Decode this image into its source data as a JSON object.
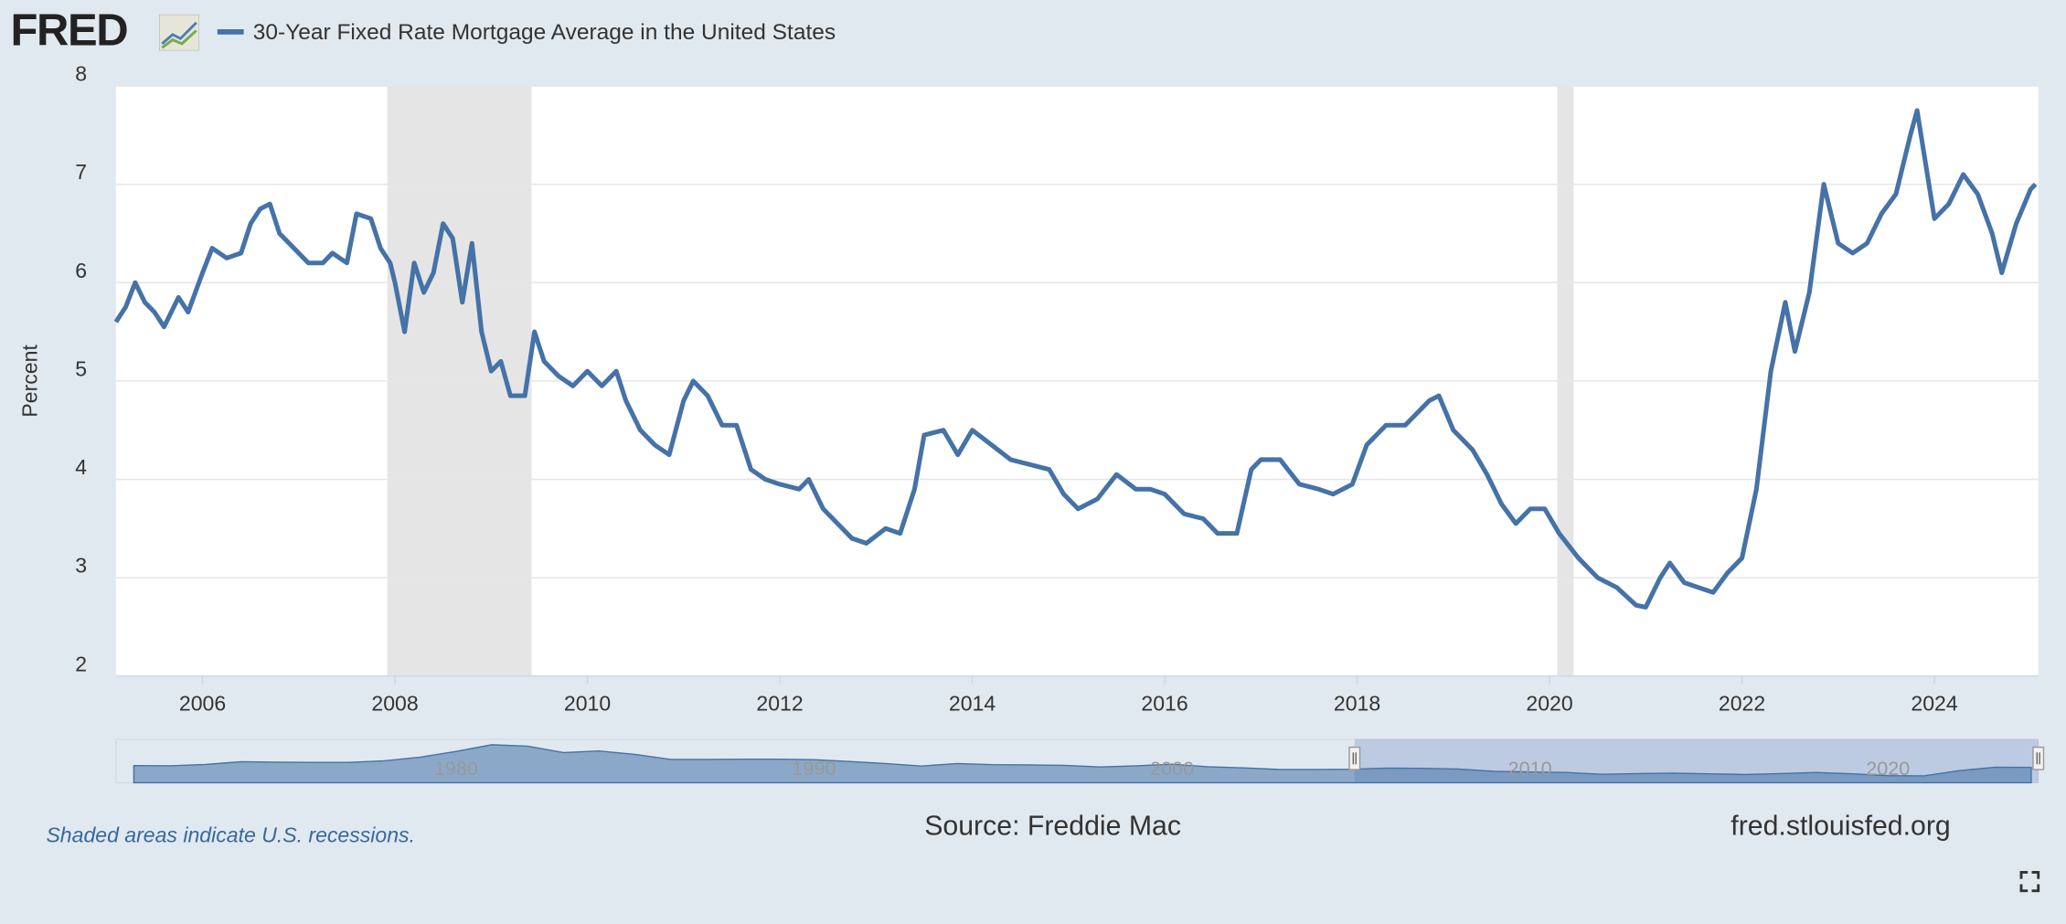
{
  "chart_data": {
    "type": "line",
    "logo": "FRED",
    "ylabel": "Percent",
    "note": "Shaded areas indicate U.S. recessions.",
    "source": "Source: Freddie Mac",
    "site": "fred.stlouisfed.org",
    "xlim": [
      2005.1,
      2025.08
    ],
    "xticks": [
      2006,
      2008,
      2010,
      2012,
      2014,
      2016,
      2018,
      2020,
      2022,
      2024
    ],
    "ylim": [
      2,
      8
    ],
    "yticks": [
      2,
      3,
      4,
      5,
      6,
      7,
      8
    ],
    "grid": true,
    "recessions": [
      [
        2007.92,
        2009.42
      ],
      [
        2020.08,
        2020.25
      ]
    ],
    "x": [
      2005.1,
      2005.2,
      2005.3,
      2005.4,
      2005.5,
      2005.6,
      2005.75,
      2005.85,
      2006.0,
      2006.1,
      2006.25,
      2006.4,
      2006.5,
      2006.6,
      2006.7,
      2006.8,
      2006.95,
      2007.1,
      2007.25,
      2007.35,
      2007.5,
      2007.6,
      2007.75,
      2007.85,
      2007.95,
      2008.0,
      2008.1,
      2008.2,
      2008.3,
      2008.4,
      2008.5,
      2008.6,
      2008.7,
      2008.8,
      2008.9,
      2009.0,
      2009.1,
      2009.2,
      2009.35,
      2009.45,
      2009.55,
      2009.7,
      2009.85,
      2010.0,
      2010.15,
      2010.3,
      2010.4,
      2010.55,
      2010.7,
      2010.85,
      2011.0,
      2011.1,
      2011.25,
      2011.4,
      2011.55,
      2011.7,
      2011.85,
      2012.0,
      2012.2,
      2012.3,
      2012.45,
      2012.6,
      2012.75,
      2012.9,
      2013.1,
      2013.25,
      2013.4,
      2013.5,
      2013.7,
      2013.85,
      2014.0,
      2014.2,
      2014.4,
      2014.6,
      2014.8,
      2014.95,
      2015.1,
      2015.3,
      2015.5,
      2015.7,
      2015.85,
      2016.0,
      2016.2,
      2016.4,
      2016.55,
      2016.75,
      2016.9,
      2017.0,
      2017.2,
      2017.4,
      2017.6,
      2017.75,
      2017.95,
      2018.1,
      2018.3,
      2018.5,
      2018.75,
      2018.85,
      2019.0,
      2019.2,
      2019.35,
      2019.5,
      2019.65,
      2019.8,
      2019.95,
      2020.1,
      2020.3,
      2020.5,
      2020.7,
      2020.9,
      2021.0,
      2021.15,
      2021.25,
      2021.4,
      2021.55,
      2021.7,
      2021.85,
      2022.0,
      2022.15,
      2022.3,
      2022.45,
      2022.55,
      2022.7,
      2022.85,
      2023.0,
      2023.15,
      2023.3,
      2023.45,
      2023.6,
      2023.75,
      2023.82,
      2024.0,
      2024.15,
      2024.3,
      2024.45,
      2024.6,
      2024.7,
      2024.85,
      2025.0,
      2025.05
    ],
    "series": [
      {
        "name": "30-Year Fixed Rate Mortgage Average in the United States",
        "color": "#4572a7",
        "values": [
          5.6,
          5.75,
          6.0,
          5.8,
          5.7,
          5.55,
          5.85,
          5.7,
          6.1,
          6.35,
          6.25,
          6.3,
          6.6,
          6.75,
          6.8,
          6.5,
          6.35,
          6.2,
          6.2,
          6.3,
          6.2,
          6.7,
          6.65,
          6.35,
          6.2,
          6.0,
          5.5,
          6.2,
          5.9,
          6.1,
          6.6,
          6.45,
          5.8,
          6.4,
          5.5,
          5.1,
          5.2,
          4.85,
          4.85,
          5.5,
          5.2,
          5.05,
          4.95,
          5.1,
          4.95,
          5.1,
          4.8,
          4.5,
          4.35,
          4.25,
          4.8,
          5.0,
          4.85,
          4.55,
          4.55,
          4.1,
          4.0,
          3.95,
          3.9,
          4.0,
          3.7,
          3.55,
          3.4,
          3.35,
          3.5,
          3.45,
          3.9,
          4.45,
          4.5,
          4.25,
          4.5,
          4.35,
          4.2,
          4.15,
          4.1,
          3.85,
          3.7,
          3.8,
          4.05,
          3.9,
          3.9,
          3.85,
          3.65,
          3.6,
          3.45,
          3.45,
          4.1,
          4.2,
          4.2,
          3.95,
          3.9,
          3.85,
          3.95,
          4.35,
          4.55,
          4.55,
          4.8,
          4.85,
          4.5,
          4.3,
          4.05,
          3.75,
          3.55,
          3.7,
          3.7,
          3.45,
          3.2,
          3.0,
          2.9,
          2.72,
          2.7,
          3.0,
          3.15,
          2.95,
          2.9,
          2.85,
          3.05,
          3.2,
          3.9,
          5.1,
          5.8,
          5.3,
          5.9,
          7.0,
          6.4,
          6.3,
          6.4,
          6.7,
          6.9,
          7.5,
          7.75,
          6.65,
          6.8,
          7.1,
          6.9,
          6.5,
          6.1,
          6.6,
          6.95,
          7.0
        ]
      }
    ],
    "navigator": {
      "xlim": [
        1970.5,
        2024.2
      ],
      "xticks": [
        1980,
        1990,
        2000,
        2010,
        2020
      ],
      "ylim": [
        0,
        19
      ],
      "x": [
        1971,
        1972,
        1973,
        1974,
        1975,
        1976,
        1977,
        1978,
        1979,
        1980,
        1981,
        1982,
        1983,
        1984,
        1985,
        1986,
        1987,
        1988,
        1989,
        1990,
        1991,
        1992,
        1993,
        1994,
        1995,
        1996,
        1997,
        1998,
        1999,
        2000,
        2001,
        2002,
        2003,
        2004,
        2005,
        2006,
        2007,
        2008,
        2009,
        2010,
        2011,
        2012,
        2013,
        2014,
        2015,
        2016,
        2017,
        2018,
        2019,
        2020,
        2021,
        2022,
        2023,
        2024
      ],
      "values": [
        7.5,
        7.4,
        8.0,
        9.2,
        9.0,
        8.9,
        8.9,
        9.6,
        11.2,
        13.7,
        16.6,
        16.0,
        13.2,
        13.9,
        12.4,
        10.2,
        10.2,
        10.3,
        10.3,
        10.1,
        9.3,
        8.4,
        7.3,
        8.4,
        7.9,
        7.8,
        7.6,
        6.9,
        7.4,
        8.1,
        7.0,
        6.5,
        5.8,
        5.8,
        5.9,
        6.4,
        6.3,
        6.0,
        5.0,
        4.7,
        4.5,
        3.7,
        4.0,
        4.2,
        3.9,
        3.6,
        4.0,
        4.5,
        3.9,
        3.1,
        3.0,
        5.3,
        6.8,
        6.7
      ]
    }
  }
}
